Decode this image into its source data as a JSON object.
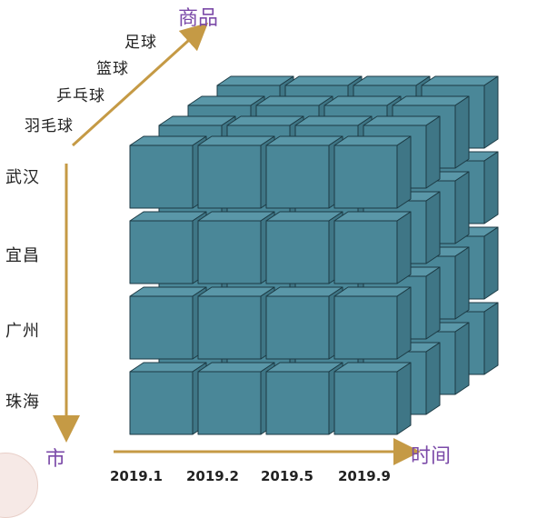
{
  "axes": {
    "product_title": "商品",
    "city_title": "市",
    "time_title": "时间"
  },
  "products": [
    "足球",
    "篮球",
    "乒乓球",
    "羽毛球"
  ],
  "cities": [
    "武汉",
    "宜昌",
    "广州",
    "珠海"
  ],
  "times": [
    "2019.1",
    "2019.2",
    "2019.5",
    "2019.9"
  ],
  "colors": {
    "cube_front": "#4a8798",
    "cube_top": "#5a97a8",
    "cube_side": "#3f7686",
    "cube_edge": "#1c3a44",
    "axis_arrow": "#c59a45",
    "axis_title": "#7b4aa8"
  },
  "grid": {
    "cols": 4,
    "rows": 4,
    "depth": 4
  }
}
